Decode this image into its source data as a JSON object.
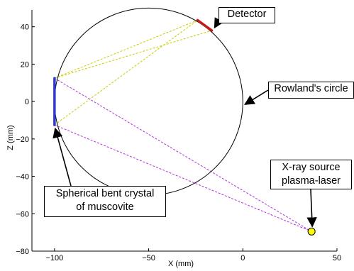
{
  "axes": {
    "xlabel": "X (mm)",
    "ylabel": "Z (mm)",
    "xlim": [
      -112,
      50
    ],
    "ylim": [
      -80,
      49
    ],
    "xticks": [
      -100,
      -50,
      0,
      50
    ],
    "yticks": [
      40,
      20,
      0,
      -20,
      -40,
      -60,
      -80
    ],
    "xtick_labels": [
      "−100",
      "−50",
      "0",
      "50"
    ],
    "ytick_labels": [
      "40",
      "20",
      "0",
      "−20",
      "−40",
      "−60",
      "−80"
    ]
  },
  "chart_data": {
    "type": "diagram",
    "rowland_circle": {
      "center": [
        -50,
        0
      ],
      "radius": 50
    },
    "crystal": {
      "x": -100,
      "z_from": -12.5,
      "z_to": 12.5,
      "color": "#2a3bd6"
    },
    "detector": {
      "from": [
        -24,
        43.5
      ],
      "to": [
        -16.5,
        38
      ],
      "color": "#c41a1a"
    },
    "source": {
      "x": 36.5,
      "z": -69.5,
      "color": "#ffff00"
    },
    "reflected_rays": {
      "color": "#cccc00",
      "segments": [
        [
          [
            -100,
            12.5
          ],
          [
            -24,
            43.5
          ]
        ],
        [
          [
            -100,
            12.5
          ],
          [
            -16.5,
            38
          ]
        ],
        [
          [
            -100,
            -12.5
          ],
          [
            -24,
            43.5
          ]
        ]
      ]
    },
    "incident_rays": {
      "color": "#b030d8",
      "segments": [
        [
          [
            -100,
            12.5
          ],
          [
            36.5,
            -69.5
          ]
        ],
        [
          [
            -100,
            -12.5
          ],
          [
            36.5,
            -69.5
          ]
        ]
      ]
    },
    "labels": [
      {
        "key": "detector",
        "lines": [
          "Detector"
        ]
      },
      {
        "key": "rowland",
        "lines": [
          "Rowland's circle"
        ]
      },
      {
        "key": "source",
        "lines": [
          "X-ray source",
          "plasma-laser"
        ]
      },
      {
        "key": "crystal",
        "lines": [
          "Spherical bent crystal",
          "of muscovite"
        ]
      }
    ]
  }
}
